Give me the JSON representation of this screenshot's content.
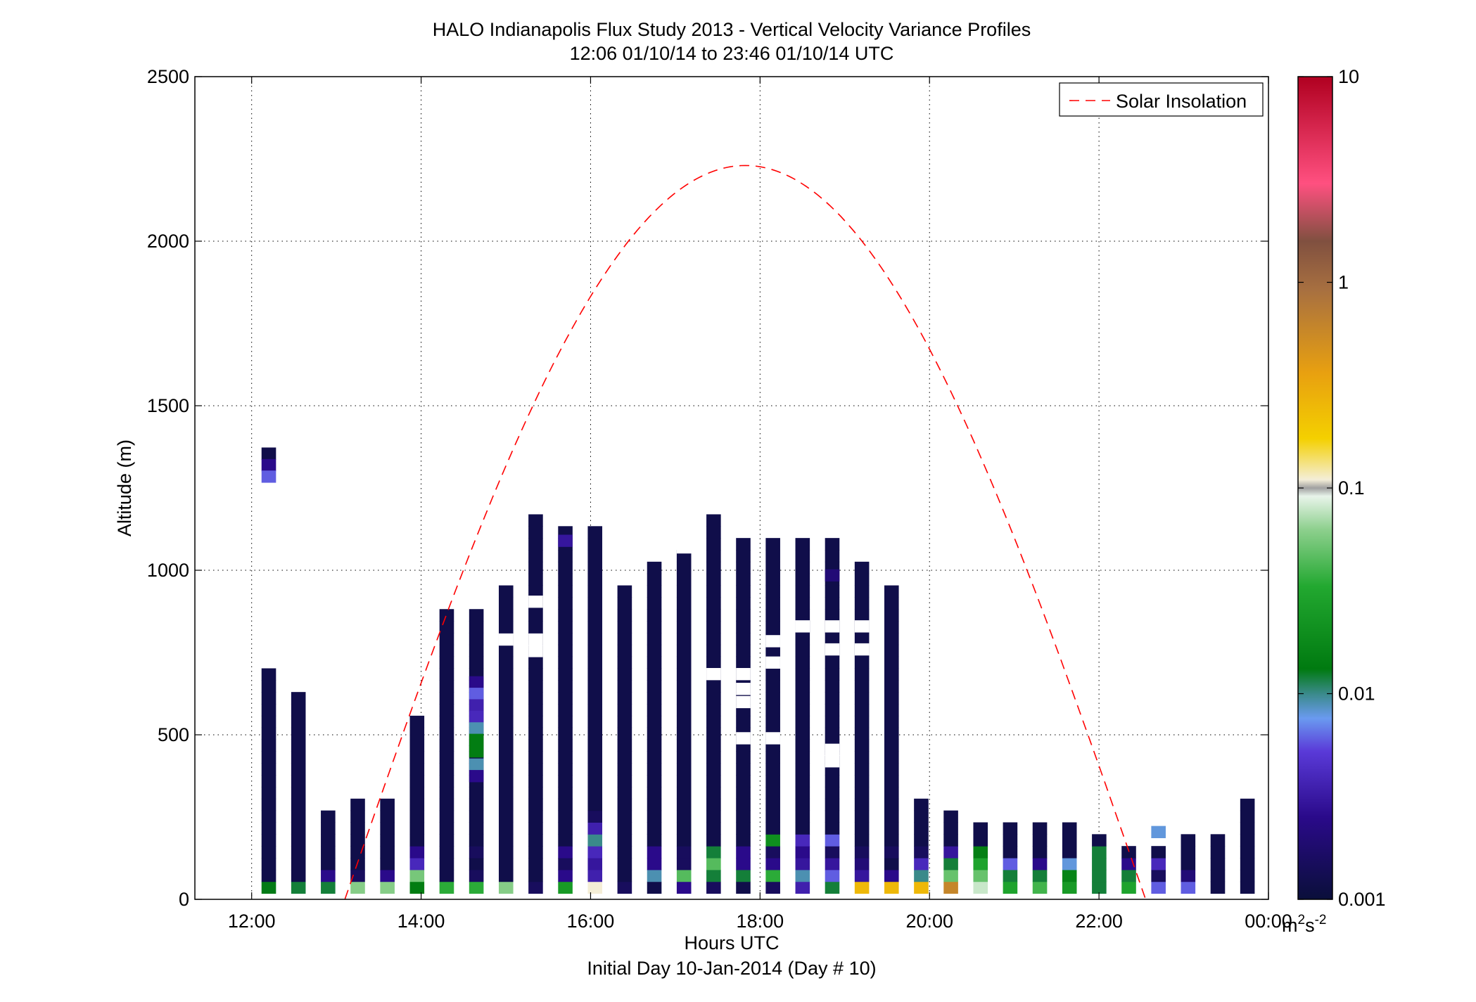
{
  "chart_data": {
    "type": "heatmap",
    "title": "HALO Indianapolis Flux Study 2013 - Vertical Velocity Variance Profiles",
    "subtitle": "12:06 01/10/14 to 23:46 01/10/14  UTC",
    "xlabel": "Hours UTC",
    "xlabel2": "Initial Day 10-Jan-2014 (Day # 10)",
    "ylabel": "Altitude (m)",
    "xlim": [
      11.33,
      24.0
    ],
    "ylim": [
      0,
      2500
    ],
    "x_ticks": [
      12,
      14,
      16,
      18,
      20,
      22,
      24
    ],
    "x_tick_labels": [
      "12:00",
      "14:00",
      "16:00",
      "18:00",
      "20:00",
      "22:00",
      "00:00"
    ],
    "y_ticks": [
      0,
      500,
      1000,
      1500,
      2000,
      2500
    ],
    "y_tick_labels": [
      "0",
      "500",
      "1000",
      "1500",
      "2000",
      "2500"
    ],
    "grid": true,
    "legend": {
      "position": "top-right",
      "entries": [
        "Solar Insolation"
      ]
    },
    "colorbar": {
      "scale": "log",
      "range": [
        0.001,
        10
      ],
      "tick_values": [
        0.001,
        0.01,
        0.1,
        1,
        10
      ],
      "tick_labels": [
        "0.001",
        "0.01",
        "0.1",
        "1",
        "10"
      ],
      "unit": "m²s⁻²",
      "unit_base": "m",
      "unit_exp1": "2",
      "unit_mid": "s",
      "unit_exp2": "-2"
    },
    "bin": {
      "width_hours": 0.1667,
      "height_m": 36
    },
    "solar_insolation": {
      "name": "Solar Insolation",
      "color": "#ff0000",
      "peak_time_hours": 17.83,
      "peak_altitude_m": 2230,
      "zero_start_hours": 13.1,
      "zero_end_hours": 22.55
    },
    "columns": [
      {
        "t": 12.2,
        "d": 0.0012,
        "h": 685,
        "low": [
          0.013,
          0.0012,
          0.0012
        ]
      },
      {
        "t": 12.55,
        "d": 0.0012,
        "h": 610,
        "low": [
          0.012,
          0.0012,
          0.0012
        ]
      },
      {
        "t": 12.9,
        "d": 0.0012,
        "h": 265,
        "low": [
          0.012,
          0.0025,
          0.0012
        ]
      },
      {
        "t": 13.25,
        "d": 0.0012,
        "h": 300,
        "low": [
          0.06,
          0.0015,
          0.0012
        ]
      },
      {
        "t": 13.6,
        "d": 0.0012,
        "h": 300,
        "low": [
          0.06,
          0.0025,
          0.0012,
          0.0012
        ]
      },
      {
        "t": 13.95,
        "d": 0.0012,
        "h": 530,
        "low": [
          0.014,
          0.055,
          0.004,
          0.0025
        ]
      },
      {
        "t": 14.3,
        "d": 0.0012,
        "h": 880,
        "low": [
          0.035,
          0.0012,
          0.0012
        ]
      },
      {
        "t": 14.65,
        "d": 0.0012,
        "h": 880,
        "low": [
          0.035,
          0.0015,
          0.0012,
          0.0015
        ]
      },
      {
        "t": 15.0,
        "d": 0.0012,
        "h": 940,
        "low": [
          0.06,
          0.0012,
          0.0012
        ]
      },
      {
        "t": 15.35,
        "d": 0.0012,
        "h": 1145,
        "low": [
          0.0015,
          0.0012,
          0.0012
        ]
      },
      {
        "t": 15.7,
        "d": 0.0012,
        "h": 1110,
        "low": [
          0.025,
          0.0025,
          0.0015,
          0.0025
        ]
      },
      {
        "t": 16.05,
        "d": 0.0012,
        "h": 1110,
        "low": [
          0.11,
          0.0035,
          0.003,
          0.004,
          0.01,
          0.0035,
          0.0015
        ]
      },
      {
        "t": 16.4,
        "d": 0.0012,
        "h": 950,
        "low": [
          0.0015,
          0.0012,
          0.0012
        ]
      },
      {
        "t": 16.75,
        "d": 0.0012,
        "h": 990,
        "low": [
          0.0012,
          0.009,
          0.0025,
          0.0025
        ]
      },
      {
        "t": 17.1,
        "d": 0.0012,
        "h": 1030,
        "low": [
          0.0025,
          0.045,
          0.0015,
          0.0015
        ]
      },
      {
        "t": 17.45,
        "d": 0.0012,
        "h": 1145,
        "low": [
          0.0015,
          0.012,
          0.045,
          0.012
        ]
      },
      {
        "t": 17.8,
        "d": 0.0012,
        "h": 1070,
        "low": [
          0.0012,
          0.012,
          0.0025,
          0.0025
        ]
      },
      {
        "t": 18.15,
        "d": 0.0012,
        "h": 1070,
        "low": [
          0.0015,
          0.035,
          0.0025,
          0.0015,
          0.02
        ]
      },
      {
        "t": 18.5,
        "d": 0.0012,
        "h": 1070,
        "low": [
          0.0035,
          0.009,
          0.003,
          0.0025,
          0.004
        ]
      },
      {
        "t": 18.85,
        "d": 0.0012,
        "h": 1070,
        "low": [
          0.012,
          0.006,
          0.003,
          0.0015,
          0.006
        ]
      },
      {
        "t": 19.2,
        "d": 0.0012,
        "h": 1000,
        "low": [
          0.25,
          0.003,
          0.002,
          0.0015
        ]
      },
      {
        "t": 19.55,
        "d": 0.0012,
        "h": 940,
        "low": [
          0.25,
          0.0025,
          0.0012,
          0.0015
        ]
      },
      {
        "t": 19.9,
        "d": 0.0012,
        "h": 300,
        "low": [
          0.25,
          0.01,
          0.004,
          0.0015
        ]
      },
      {
        "t": 20.25,
        "d": 0.0012,
        "h": 265,
        "low": [
          0.6,
          0.05,
          0.012,
          0.003
        ]
      },
      {
        "t": 20.6,
        "d": 0.0012,
        "h": 230,
        "low": [
          0.08,
          0.05,
          0.03,
          0.015
        ]
      },
      {
        "t": 20.95,
        "d": 0.0012,
        "h": 230,
        "low": [
          0.03,
          0.012,
          0.006
        ]
      },
      {
        "t": 21.3,
        "d": 0.0012,
        "h": 230,
        "low": [
          0.04,
          0.012,
          0.0025
        ]
      },
      {
        "t": 21.65,
        "d": 0.0012,
        "h": 230,
        "low": [
          0.025,
          0.016,
          0.008
        ]
      },
      {
        "t": 22.0,
        "d": 0.0012,
        "h": 190,
        "low": [
          0.012,
          0.012,
          0.012,
          0.012
        ]
      },
      {
        "t": 22.35,
        "d": 0.0012,
        "h": 150,
        "low": [
          0.03,
          0.012,
          0.0025
        ]
      },
      {
        "t": 22.7,
        "d": 0.0012,
        "h": 150,
        "low": [
          0.006,
          0.0015,
          0.004
        ]
      },
      {
        "t": 23.05,
        "d": 0.0012,
        "h": 190,
        "low": [
          0.006,
          0.002,
          0.0012,
          0.0012
        ]
      },
      {
        "t": 23.4,
        "d": 0.0012,
        "h": 190,
        "low": [
          0.0012,
          0.0012
        ]
      },
      {
        "t": 23.75,
        "d": 0.0012,
        "h": 300,
        "low": [
          0.0012
        ]
      }
    ],
    "isolated_cells": [
      {
        "t": 12.2,
        "z": 1355,
        "v": 0.0012
      },
      {
        "t": 12.2,
        "z": 1320,
        "v": 0.0025
      },
      {
        "t": 12.2,
        "z": 1285,
        "v": 0.006
      },
      {
        "t": 14.65,
        "z": 660,
        "v": 0.0025
      },
      {
        "t": 14.65,
        "z": 625,
        "v": 0.006
      },
      {
        "t": 14.65,
        "z": 590,
        "v": 0.0035
      },
      {
        "t": 14.65,
        "z": 555,
        "v": 0.004
      },
      {
        "t": 14.65,
        "z": 520,
        "v": 0.009
      },
      {
        "t": 14.65,
        "z": 485,
        "v": 0.014
      },
      {
        "t": 14.65,
        "z": 450,
        "v": 0.014
      },
      {
        "t": 14.65,
        "z": 410,
        "v": 0.009
      },
      {
        "t": 14.65,
        "z": 375,
        "v": 0.0025
      },
      {
        "t": 15.7,
        "z": 1090,
        "v": 0.003
      },
      {
        "t": 18.85,
        "z": 985,
        "v": 0.002
      },
      {
        "t": 22.7,
        "z": 205,
        "v": 0.008
      }
    ],
    "gaps": [
      {
        "t": 15.35,
        "z": 905
      },
      {
        "t": 15.35,
        "z": 790
      },
      {
        "t": 15.0,
        "z": 790
      },
      {
        "t": 15.35,
        "z": 755
      },
      {
        "t": 17.45,
        "z": 685
      },
      {
        "t": 17.8,
        "z": 685
      },
      {
        "t": 17.8,
        "z": 640
      },
      {
        "t": 17.8,
        "z": 600
      },
      {
        "t": 18.15,
        "z": 720
      },
      {
        "t": 17.8,
        "z": 490
      },
      {
        "t": 18.15,
        "z": 490
      },
      {
        "t": 18.85,
        "z": 420
      },
      {
        "t": 18.85,
        "z": 455
      },
      {
        "t": 17.1,
        "z": 1070
      },
      {
        "t": 18.15,
        "z": 785
      },
      {
        "t": 19.2,
        "z": 830
      },
      {
        "t": 18.85,
        "z": 830
      },
      {
        "t": 18.5,
        "z": 830
      },
      {
        "t": 18.85,
        "z": 760
      },
      {
        "t": 19.2,
        "z": 760
      }
    ]
  }
}
